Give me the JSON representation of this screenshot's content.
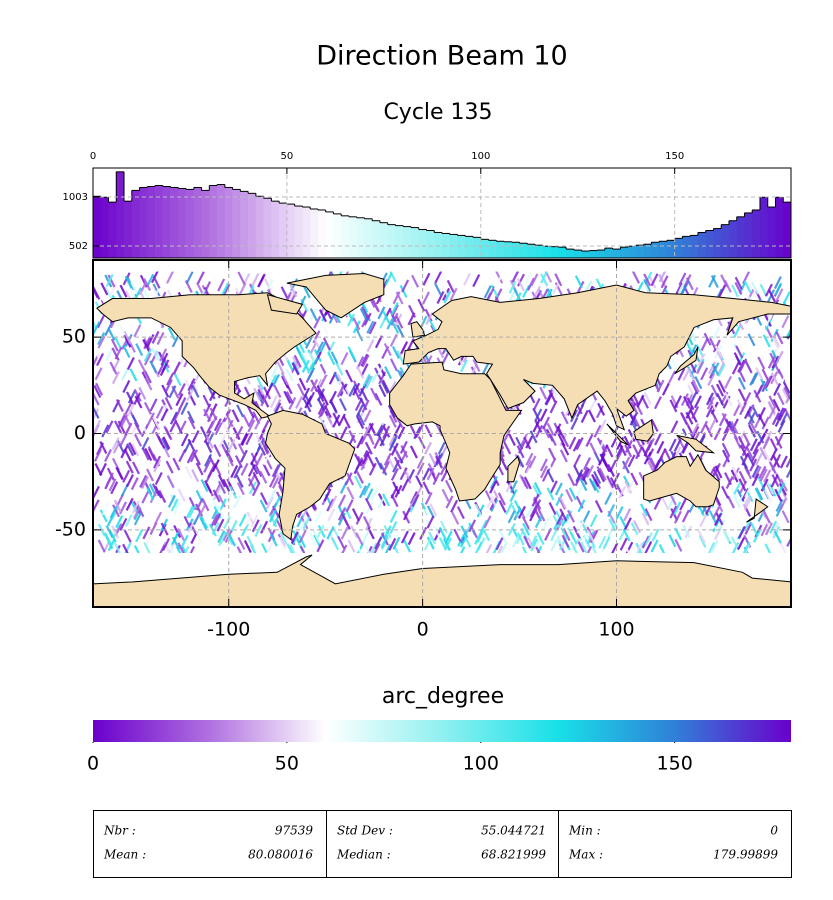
{
  "title": "Direction Beam 10",
  "subtitle": "Cycle 135",
  "chart_data": [
    {
      "type": "histogram",
      "bins": [
        0,
        2,
        4,
        6,
        8,
        10,
        12,
        14,
        16,
        18,
        20,
        22,
        24,
        26,
        28,
        30,
        32,
        34,
        36,
        38,
        40,
        42,
        44,
        46,
        48,
        50,
        52,
        54,
        56,
        58,
        60,
        62,
        64,
        66,
        68,
        70,
        72,
        74,
        76,
        78,
        80,
        82,
        84,
        86,
        88,
        90,
        92,
        94,
        96,
        98,
        100,
        102,
        104,
        106,
        108,
        110,
        112,
        114,
        116,
        118,
        120,
        122,
        124,
        126,
        128,
        130,
        132,
        134,
        136,
        138,
        140,
        142,
        144,
        146,
        148,
        150,
        152,
        154,
        156,
        158,
        160,
        162,
        164,
        166,
        168,
        170,
        172,
        174,
        176,
        178,
        180
      ],
      "values": [
        1010,
        1000,
        950,
        1260,
        960,
        1070,
        1100,
        1110,
        1120,
        1110,
        1100,
        1090,
        1080,
        1100,
        1070,
        1120,
        1130,
        1100,
        1080,
        1060,
        1040,
        1010,
        990,
        960,
        940,
        930,
        910,
        900,
        880,
        870,
        850,
        830,
        810,
        800,
        790,
        780,
        760,
        740,
        720,
        710,
        700,
        690,
        670,
        660,
        640,
        630,
        620,
        610,
        600,
        590,
        570,
        560,
        550,
        545,
        540,
        530,
        520,
        510,
        500,
        495,
        490,
        470,
        460,
        450,
        455,
        460,
        480,
        470,
        490,
        500,
        510,
        520,
        540,
        550,
        560,
        580,
        600,
        610,
        640,
        660,
        680,
        720,
        760,
        800,
        840,
        870,
        1000,
        900,
        1000,
        950
      ],
      "xlim": [
        0,
        180
      ],
      "xticks": [
        0,
        50,
        100,
        150
      ],
      "ylim": [
        379,
        1299
      ],
      "yticks": [
        502,
        1003
      ],
      "grid": true
    },
    {
      "type": "map",
      "xlim": [
        -170,
        190
      ],
      "xticks": [
        -100,
        0,
        100
      ],
      "ylim": [
        -90,
        90
      ],
      "yticks": [
        -50,
        0,
        50
      ],
      "grid": true,
      "land_color": "#f5deb3"
    },
    {
      "type": "colorbar",
      "title": "arc_degree",
      "xlim": [
        0,
        180
      ],
      "xticks": [
        0,
        50,
        100,
        150
      ],
      "colors": [
        "#6a00cc",
        "#b070e0",
        "#ffffff",
        "#90f0f0",
        "#18e0e8",
        "#3080d8",
        "#6a00cc"
      ]
    }
  ],
  "stats": [
    [
      [
        "Nbr :",
        97539
      ],
      [
        "Mean :",
        80.080016
      ]
    ],
    [
      [
        "Std Dev :",
        55.044721
      ],
      [
        "Median :",
        68.821999
      ]
    ],
    [
      [
        "Min :",
        0
      ],
      [
        "Max :",
        179.99899
      ]
    ]
  ]
}
